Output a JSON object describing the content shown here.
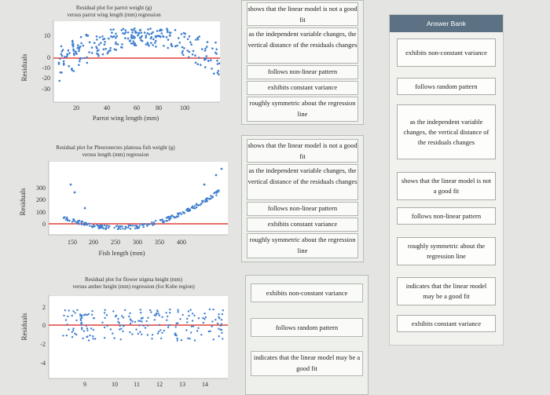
{
  "plots": [
    {
      "title": "Residual plot for parrot weight (g)\nversus parrot wing length (mm) regression",
      "ylabel": "Residuals",
      "xlabel": "Parrot wing length (mm)",
      "yticks": [
        "10",
        "0",
        "-10",
        "-20",
        "-30"
      ],
      "xticks": [
        "20",
        "40",
        "60",
        "80",
        "100"
      ]
    },
    {
      "title": "Residual plot for Pleuronectes platessa fish weight (g)\nversus length (mm) regression",
      "ylabel": "Residuals",
      "xlabel": "Fish length (mm)",
      "yticks": [
        "300",
        "200",
        "100",
        "0"
      ],
      "xticks": [
        "150",
        "200",
        "250",
        "300",
        "350",
        "400"
      ]
    },
    {
      "title": "Residual plot for flower stigma height (mm)\nversus anther height (mm) regression (for Kobe region)",
      "ylabel": "Residuals",
      "xlabel": "",
      "yticks": [
        "2",
        "0",
        "-2",
        "-4"
      ],
      "xticks": [
        "9",
        "10",
        "11",
        "12",
        "13",
        "14"
      ]
    }
  ],
  "zone1": [
    "shows that the linear model is not a good fit",
    "as the independent variable changes, the vertical distance of the residuals changes",
    "follows non-linear pattern",
    "exhibits constant variance",
    "roughly symmetric about the regression line"
  ],
  "zone2": [
    "shows that the linear model is not a good fit",
    "as the independent variable changes, the vertical distance of the residuals changes",
    "follows non-linear pattern",
    "exhibits constant variance",
    "roughly symmetric about the regression line"
  ],
  "zone3": [
    "exhibits non-constant variance",
    "follows random pattern",
    "indicates that the linear model may be a good fit"
  ],
  "bank": {
    "title": "Answer Bank",
    "items": [
      "exhibits non-constant variance",
      "follows random pattern",
      "as the independent variable changes, the vertical distance of the residuals changes",
      "shows that the linear model is not a good fit",
      "follows non-linear pattern",
      "roughly symmetric about the regression line",
      "indicates that the linear model may be a good fit",
      "exhibits constant variance"
    ]
  },
  "colors": {
    "points": "#3f7fd0",
    "line": "#e0413a",
    "bank_header": "#5c7183"
  }
}
